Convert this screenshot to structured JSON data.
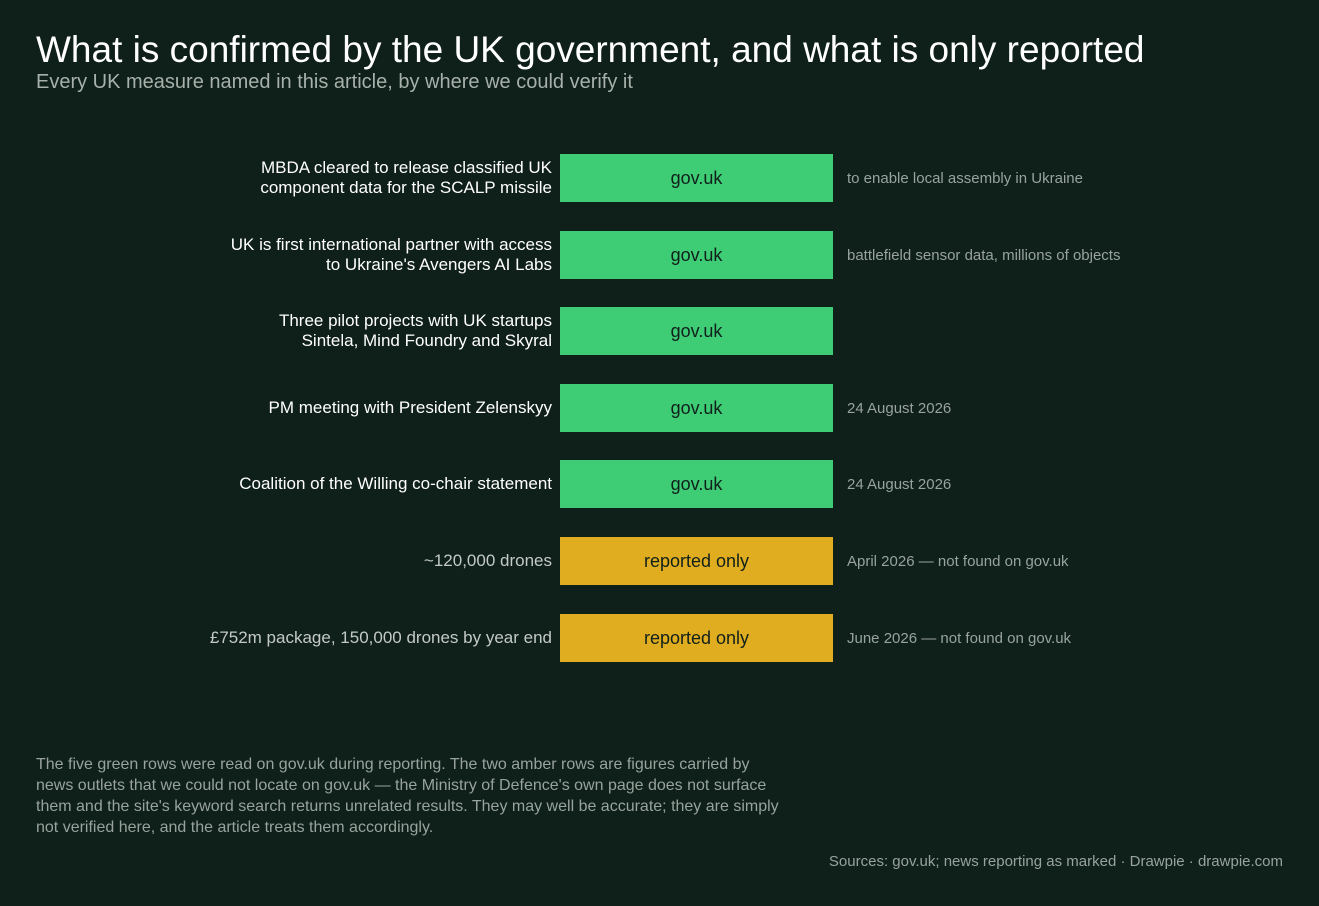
{
  "title": "What is confirmed by the UK government, and what is only reported",
  "subtitle": "Every UK measure named in this article, by where we could verify it",
  "colors": {
    "background": "#0f1f1a",
    "confirmed": "#3ecc75",
    "reported": "#e1ad20"
  },
  "chart_data": {
    "type": "table",
    "columns": [
      "measure",
      "status",
      "note"
    ],
    "rows": [
      {
        "measure": "MBDA cleared to release classified UK\ncomponent data for the SCALP missile",
        "status": "gov.uk",
        "category": "confirmed",
        "note": "to enable local assembly in Ukraine"
      },
      {
        "measure": "UK is first international partner with access\nto Ukraine's Avengers AI Labs",
        "status": "gov.uk",
        "category": "confirmed",
        "note": "battlefield sensor data, millions of objects"
      },
      {
        "measure": "Three pilot projects with UK startups\nSintela, Mind Foundry and Skyral",
        "status": "gov.uk",
        "category": "confirmed",
        "note": ""
      },
      {
        "measure": "PM meeting with President Zelenskyy",
        "status": "gov.uk",
        "category": "confirmed",
        "note": "24 August 2026"
      },
      {
        "measure": "Coalition of the Willing co-chair statement",
        "status": "gov.uk",
        "category": "confirmed",
        "note": "24 August 2026"
      },
      {
        "measure": "~120,000 drones",
        "status": "reported only",
        "category": "reported",
        "note": "April 2026 — not found on gov.uk"
      },
      {
        "measure": "£752m package, 150,000 drones by year end",
        "status": "reported only",
        "category": "reported",
        "note": "June 2026 — not found on gov.uk"
      }
    ]
  },
  "footnote": "The five green rows were read on gov.uk during reporting. The two amber rows are figures carried by news outlets that we could not locate on gov.uk — the Ministry of Defence's own page does not surface them and the site's keyword search returns unrelated results. They may well be accurate; they are simply not verified here, and the article treats them accordingly.",
  "sources": "Sources: gov.uk; news reporting as marked  ·  Drawpie · drawpie.com"
}
